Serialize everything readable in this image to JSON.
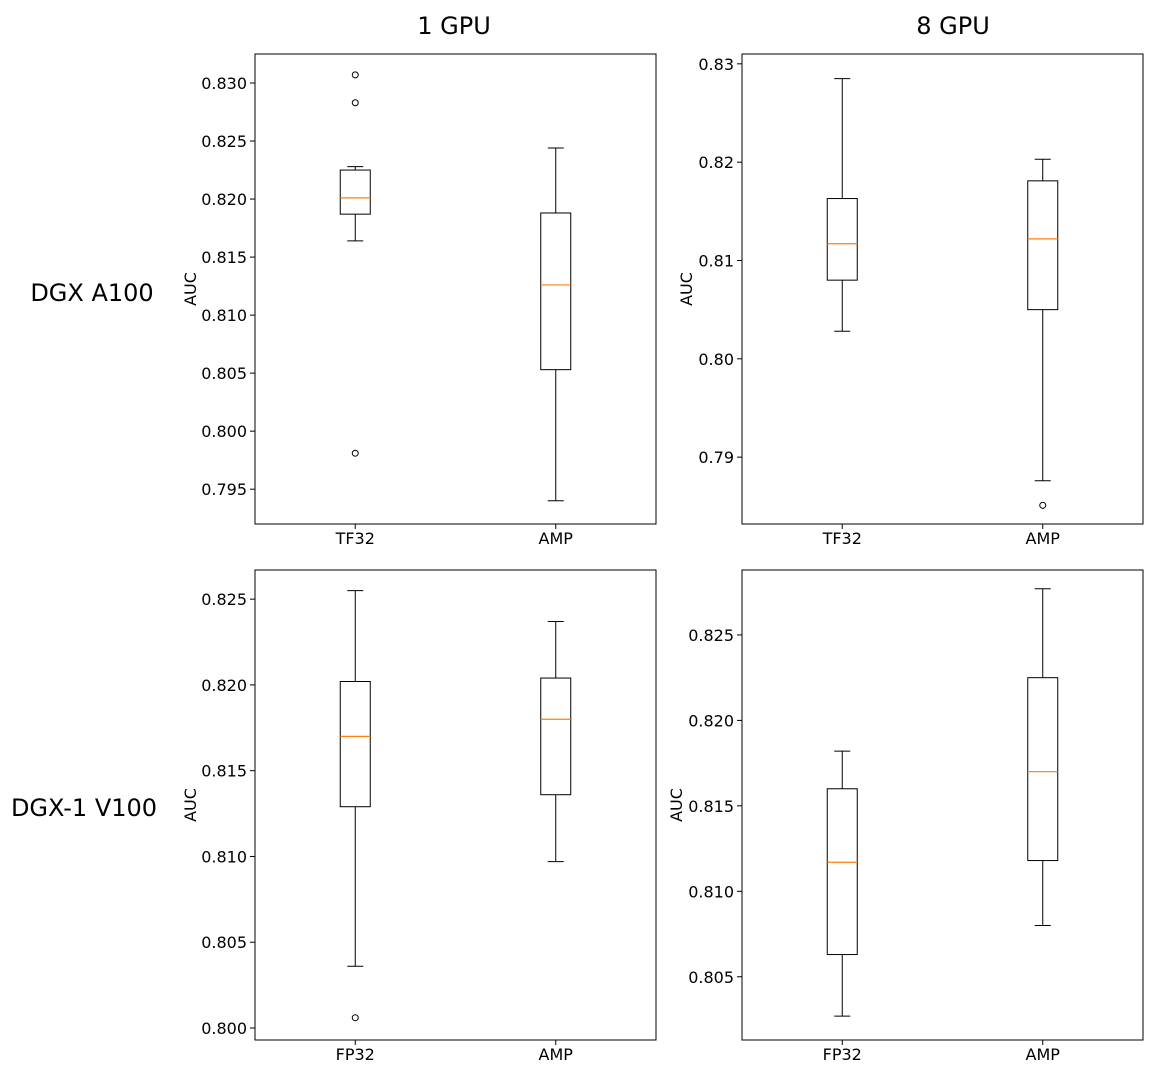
{
  "figure": {
    "column_titles": [
      "1 GPU",
      "8 GPU"
    ],
    "row_titles": [
      "DGX A100",
      "DGX-1 V100"
    ]
  },
  "colors": {
    "median": "#ff7f0e",
    "box": "#000000",
    "background": "#ffffff"
  },
  "chart_data": [
    {
      "type": "boxplot",
      "column": "1 GPU",
      "row": "DGX A100",
      "ylabel": "AUC",
      "ylim": [
        0.792,
        0.8325
      ],
      "yticks": [
        0.795,
        0.8,
        0.805,
        0.81,
        0.815,
        0.82,
        0.825,
        0.83
      ],
      "ytick_labels": [
        "0.795",
        "0.800",
        "0.805",
        "0.810",
        "0.815",
        "0.820",
        "0.825",
        "0.830"
      ],
      "categories": [
        "TF32",
        "AMP"
      ],
      "boxes": [
        {
          "label": "TF32",
          "whisker_low": 0.8164,
          "q1": 0.8187,
          "median": 0.8201,
          "q3": 0.8225,
          "whisker_high": 0.8228,
          "outliers": [
            0.8307,
            0.8283,
            0.7981
          ]
        },
        {
          "label": "AMP",
          "whisker_low": 0.794,
          "q1": 0.8053,
          "median": 0.8126,
          "q3": 0.8188,
          "whisker_high": 0.8244,
          "outliers": []
        }
      ]
    },
    {
      "type": "boxplot",
      "column": "8 GPU",
      "row": "DGX A100",
      "ylabel": "AUC",
      "ylim": [
        0.7832,
        0.831
      ],
      "yticks": [
        0.79,
        0.8,
        0.81,
        0.82,
        0.83
      ],
      "ytick_labels": [
        "0.79",
        "0.80",
        "0.81",
        "0.82",
        "0.83"
      ],
      "categories": [
        "TF32",
        "AMP"
      ],
      "boxes": [
        {
          "label": "TF32",
          "whisker_low": 0.8028,
          "q1": 0.808,
          "median": 0.8117,
          "q3": 0.8163,
          "whisker_high": 0.8285,
          "outliers": []
        },
        {
          "label": "AMP",
          "whisker_low": 0.7876,
          "q1": 0.805,
          "median": 0.8122,
          "q3": 0.8181,
          "whisker_high": 0.8203,
          "outliers": [
            0.7851
          ]
        }
      ]
    },
    {
      "type": "boxplot",
      "column": "1 GPU",
      "row": "DGX-1 V100",
      "ylabel": "AUC",
      "ylim": [
        0.7993,
        0.8267
      ],
      "yticks": [
        0.8,
        0.805,
        0.81,
        0.815,
        0.82,
        0.825
      ],
      "ytick_labels": [
        "0.800",
        "0.805",
        "0.810",
        "0.815",
        "0.820",
        "0.825"
      ],
      "categories": [
        "FP32",
        "AMP"
      ],
      "boxes": [
        {
          "label": "FP32",
          "whisker_low": 0.8036,
          "q1": 0.8129,
          "median": 0.817,
          "q3": 0.8202,
          "whisker_high": 0.8255,
          "outliers": [
            0.8006
          ]
        },
        {
          "label": "AMP",
          "whisker_low": 0.8097,
          "q1": 0.8136,
          "median": 0.818,
          "q3": 0.8204,
          "whisker_high": 0.8237,
          "outliers": []
        }
      ]
    },
    {
      "type": "boxplot",
      "column": "8 GPU",
      "row": "DGX-1 V100",
      "ylabel": "AUC",
      "ylim": [
        0.8013,
        0.8288
      ],
      "yticks": [
        0.805,
        0.81,
        0.815,
        0.82,
        0.825
      ],
      "ytick_labels": [
        "0.805",
        "0.810",
        "0.815",
        "0.820",
        "0.825"
      ],
      "categories": [
        "FP32",
        "AMP"
      ],
      "boxes": [
        {
          "label": "FP32",
          "whisker_low": 0.8027,
          "q1": 0.8063,
          "median": 0.8117,
          "q3": 0.816,
          "whisker_high": 0.8182,
          "outliers": []
        },
        {
          "label": "AMP",
          "whisker_low": 0.808,
          "q1": 0.8118,
          "median": 0.817,
          "q3": 0.8225,
          "whisker_high": 0.8277,
          "outliers": []
        }
      ]
    }
  ]
}
